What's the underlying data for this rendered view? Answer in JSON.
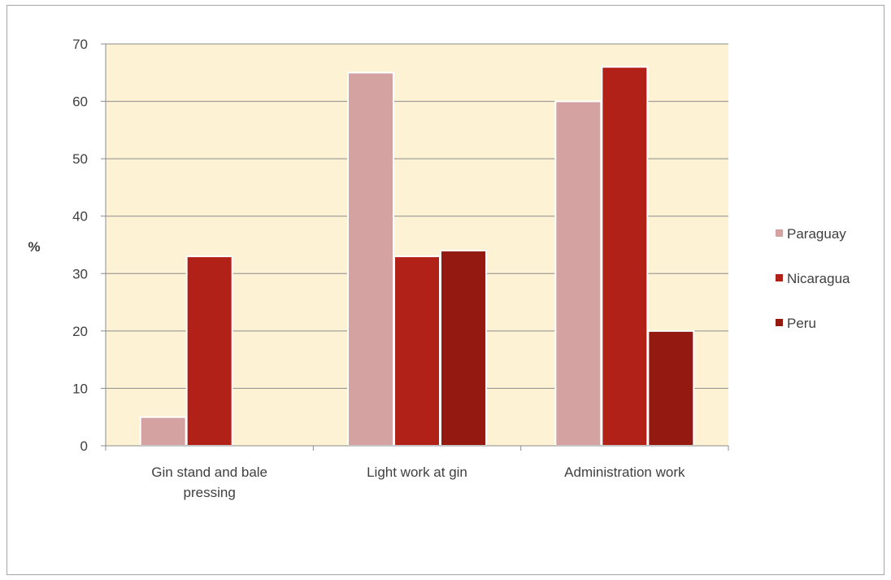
{
  "chart_data": {
    "type": "bar",
    "title": "",
    "ylabel": "%",
    "xlabel": "",
    "ylim": [
      0,
      70
    ],
    "yticks": [
      0,
      10,
      20,
      30,
      40,
      50,
      60,
      70
    ],
    "grid": true,
    "legend_position": "right",
    "categories": [
      [
        "Gin stand and bale",
        "pressing"
      ],
      [
        "Light work at gin"
      ],
      [
        "Administration work"
      ]
    ],
    "series": [
      {
        "name": "Paraguay",
        "color": "#d4a3a1",
        "values": [
          5,
          65,
          60
        ]
      },
      {
        "name": "Nicaragua",
        "color": "#b22118",
        "values": [
          33,
          33,
          66
        ]
      },
      {
        "name": "Peru",
        "color": "#941a11",
        "values": [
          null,
          34,
          20
        ]
      }
    ],
    "plot_background": "#fdf2d3"
  }
}
